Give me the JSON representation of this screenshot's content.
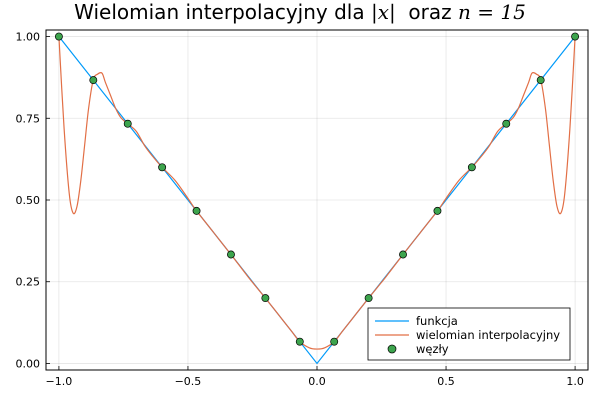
{
  "chart_data": {
    "type": "line",
    "title": {
      "prefix": "Wielomian interpolacyjny dla ",
      "math1": "|x|",
      "middle": "  oraz ",
      "math2": "n = 15"
    },
    "xlim": [
      -1.05,
      1.05
    ],
    "ylim": [
      -0.02,
      1.02
    ],
    "xticks": [
      -1.0,
      -0.5,
      0.0,
      0.5,
      1.0
    ],
    "xtick_labels": [
      "−1.0",
      "−0.5",
      "0.0",
      "0.5",
      "1.0"
    ],
    "yticks": [
      0.0,
      0.25,
      0.5,
      0.75,
      1.0
    ],
    "ytick_labels": [
      "0.00",
      "0.25",
      "0.50",
      "0.75",
      "1.00"
    ],
    "grid": true,
    "legend_position": "bottom-right",
    "series": [
      {
        "name": "funkcja",
        "kind": "line",
        "color": "#009af9",
        "x": [
          -1.0,
          0.0,
          1.0
        ],
        "y": [
          1.0,
          0.0,
          1.0
        ]
      },
      {
        "name": "wielomian interpolacyjny",
        "kind": "line",
        "color": "#e26f46",
        "x": [
          -1.0,
          -0.98,
          -0.96,
          -0.945,
          -0.93,
          -0.915,
          -0.9,
          -0.885,
          -0.867,
          -0.85,
          -0.833,
          -0.82,
          -0.8,
          -0.78,
          -0.76,
          -0.733,
          -0.7,
          -0.667,
          -0.633,
          -0.6,
          -0.55,
          -0.5,
          -0.467,
          -0.4,
          -0.333,
          -0.267,
          -0.2,
          -0.15,
          -0.1,
          -0.067,
          -0.03,
          0.0,
          0.03,
          0.067,
          0.1,
          0.15,
          0.2,
          0.267,
          0.333,
          0.4,
          0.467,
          0.5,
          0.55,
          0.6,
          0.633,
          0.667,
          0.7,
          0.733,
          0.76,
          0.78,
          0.8,
          0.82,
          0.833,
          0.85,
          0.867,
          0.885,
          0.9,
          0.915,
          0.93,
          0.945,
          0.96,
          0.98,
          1.0
        ],
        "y": [
          1.0,
          0.72,
          0.52,
          0.46,
          0.48,
          0.56,
          0.67,
          0.78,
          0.867,
          0.885,
          0.888,
          0.86,
          0.82,
          0.78,
          0.752,
          0.733,
          0.71,
          0.665,
          0.63,
          0.6,
          0.56,
          0.505,
          0.467,
          0.4,
          0.333,
          0.265,
          0.2,
          0.15,
          0.1,
          0.067,
          0.048,
          0.044,
          0.048,
          0.067,
          0.1,
          0.15,
          0.2,
          0.265,
          0.333,
          0.4,
          0.467,
          0.505,
          0.56,
          0.6,
          0.63,
          0.665,
          0.71,
          0.733,
          0.752,
          0.78,
          0.82,
          0.86,
          0.888,
          0.885,
          0.867,
          0.78,
          0.67,
          0.56,
          0.48,
          0.46,
          0.52,
          0.72,
          1.0
        ]
      },
      {
        "name": "węzły",
        "kind": "scatter",
        "color": "#3da44d",
        "x": [
          -1.0,
          -0.8667,
          -0.7333,
          -0.6,
          -0.4667,
          -0.3333,
          -0.2,
          -0.0667,
          0.0667,
          0.2,
          0.3333,
          0.4667,
          0.6,
          0.7333,
          0.8667,
          1.0
        ],
        "y": [
          1.0,
          0.8667,
          0.7333,
          0.6,
          0.4667,
          0.3333,
          0.2,
          0.0667,
          0.0667,
          0.2,
          0.3333,
          0.4667,
          0.6,
          0.7333,
          0.8667,
          1.0
        ]
      }
    ]
  }
}
